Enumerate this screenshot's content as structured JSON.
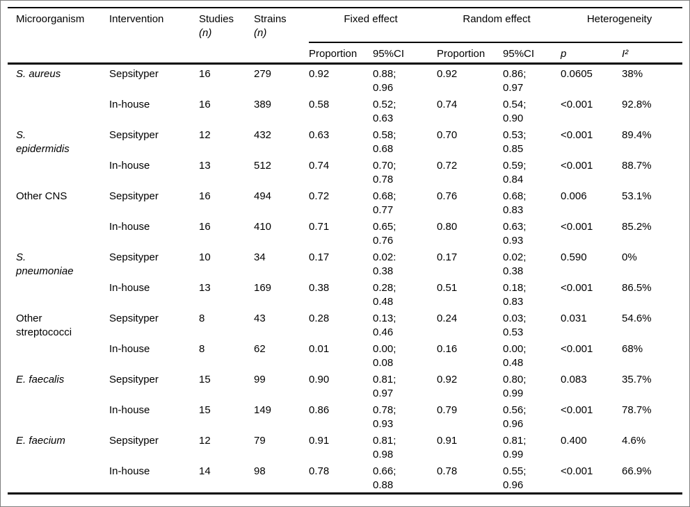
{
  "table": {
    "headers": {
      "microorganism": "Microorganism",
      "intervention": "Intervention",
      "studies": "Studies",
      "strains": "Strains",
      "count_unit": "(n)",
      "fixed_effect": "Fixed effect",
      "random_effect": "Random effect",
      "heterogeneity": "Heterogeneity",
      "proportion": "Proportion",
      "ci": "95%CI",
      "p": "p",
      "i_squared": "I²"
    },
    "groups": [
      {
        "organism": "S. aureus",
        "italic": true,
        "rows": [
          {
            "intervention": "Sepsityper",
            "studies": "16",
            "strains": "279",
            "fixed_proportion": "0.92",
            "fixed_ci": "0.88;\n0.96",
            "random_proportion": "0.92",
            "random_ci": "0.86;\n0.97",
            "p": "0.0605",
            "i_squared": "38%"
          },
          {
            "intervention": "In-house",
            "studies": "16",
            "strains": "389",
            "fixed_proportion": "0.58",
            "fixed_ci": "0.52;\n0.63",
            "random_proportion": "0.74",
            "random_ci": "0.54;\n0.90",
            "p": "<0.001",
            "i_squared": "92.8%"
          }
        ]
      },
      {
        "organism": "S.\nepidermidis",
        "italic": true,
        "rows": [
          {
            "intervention": "Sepsityper",
            "studies": "12",
            "strains": "432",
            "fixed_proportion": "0.63",
            "fixed_ci": "0.58;\n0.68",
            "random_proportion": "0.70",
            "random_ci": "0.53;\n0.85",
            "p": "<0.001",
            "i_squared": "89.4%"
          },
          {
            "intervention": "In-house",
            "studies": "13",
            "strains": "512",
            "fixed_proportion": "0.74",
            "fixed_ci": "0.70;\n0.78",
            "random_proportion": "0.72",
            "random_ci": "0.59;\n0.84",
            "p": "<0.001",
            "i_squared": "88.7%"
          }
        ]
      },
      {
        "organism": "Other CNS",
        "italic": false,
        "rows": [
          {
            "intervention": "Sepsityper",
            "studies": "16",
            "strains": "494",
            "fixed_proportion": "0.72",
            "fixed_ci": "0.68;\n0.77",
            "random_proportion": "0.76",
            "random_ci": "0.68;\n0.83",
            "p": "0.006",
            "i_squared": "53.1%"
          },
          {
            "intervention": "In-house",
            "studies": "16",
            "strains": "410",
            "fixed_proportion": "0.71",
            "fixed_ci": "0.65;\n0.76",
            "random_proportion": "0.80",
            "random_ci": "0.63;\n0.93",
            "p": "<0.001",
            "i_squared": "85.2%"
          }
        ]
      },
      {
        "organism": "S.\npneumoniae",
        "italic": true,
        "rows": [
          {
            "intervention": "Sepsityper",
            "studies": "10",
            "strains": "34",
            "fixed_proportion": "0.17",
            "fixed_ci": "0.02:\n0.38",
            "random_proportion": "0.17",
            "random_ci": "0.02;\n0.38",
            "p": "0.590",
            "i_squared": "0%"
          },
          {
            "intervention": "In-house",
            "studies": "13",
            "strains": "169",
            "fixed_proportion": "0.38",
            "fixed_ci": "0.28;\n0.48",
            "random_proportion": "0.51",
            "random_ci": "0.18;\n0.83",
            "p": "<0.001",
            "i_squared": "86.5%"
          }
        ]
      },
      {
        "organism": "Other\nstreptococci",
        "italic": false,
        "rows": [
          {
            "intervention": "Sepsityper",
            "studies": "8",
            "strains": "43",
            "fixed_proportion": "0.28",
            "fixed_ci": "0.13;\n0.46",
            "random_proportion": "0.24",
            "random_ci": "0.03;\n0.53",
            "p": "0.031",
            "i_squared": "54.6%"
          },
          {
            "intervention": "In-house",
            "studies": "8",
            "strains": "62",
            "fixed_proportion": "0.01",
            "fixed_ci": "0.00;\n0.08",
            "random_proportion": "0.16",
            "random_ci": "0.00;\n0.48",
            "p": "<0.001",
            "i_squared": "68%"
          }
        ]
      },
      {
        "organism": "E. faecalis",
        "italic": true,
        "rows": [
          {
            "intervention": "Sepsityper",
            "studies": "15",
            "strains": "99",
            "fixed_proportion": "0.90",
            "fixed_ci": "0.81;\n0.97",
            "random_proportion": "0.92",
            "random_ci": "0.80;\n0.99",
            "p": "0.083",
            "i_squared": "35.7%"
          },
          {
            "intervention": "In-house",
            "studies": "15",
            "strains": "149",
            "fixed_proportion": "0.86",
            "fixed_ci": "0.78;\n0.93",
            "random_proportion": "0.79",
            "random_ci": "0.56;\n0.96",
            "p": "<0.001",
            "i_squared": "78.7%"
          }
        ]
      },
      {
        "organism": "E. faecium",
        "italic": true,
        "rows": [
          {
            "intervention": "Sepsityper",
            "studies": "12",
            "strains": "79",
            "fixed_proportion": "0.91",
            "fixed_ci": "0.81;\n0.98",
            "random_proportion": "0.91",
            "random_ci": "0.81;\n0.99",
            "p": "0.400",
            "i_squared": "4.6%"
          },
          {
            "intervention": "In-house",
            "studies": "14",
            "strains": "98",
            "fixed_proportion": "0.78",
            "fixed_ci": "0.66;\n0.88",
            "random_proportion": "0.78",
            "random_ci": "0.55;\n0.96",
            "p": "<0.001",
            "i_squared": "66.9%"
          }
        ]
      }
    ]
  }
}
